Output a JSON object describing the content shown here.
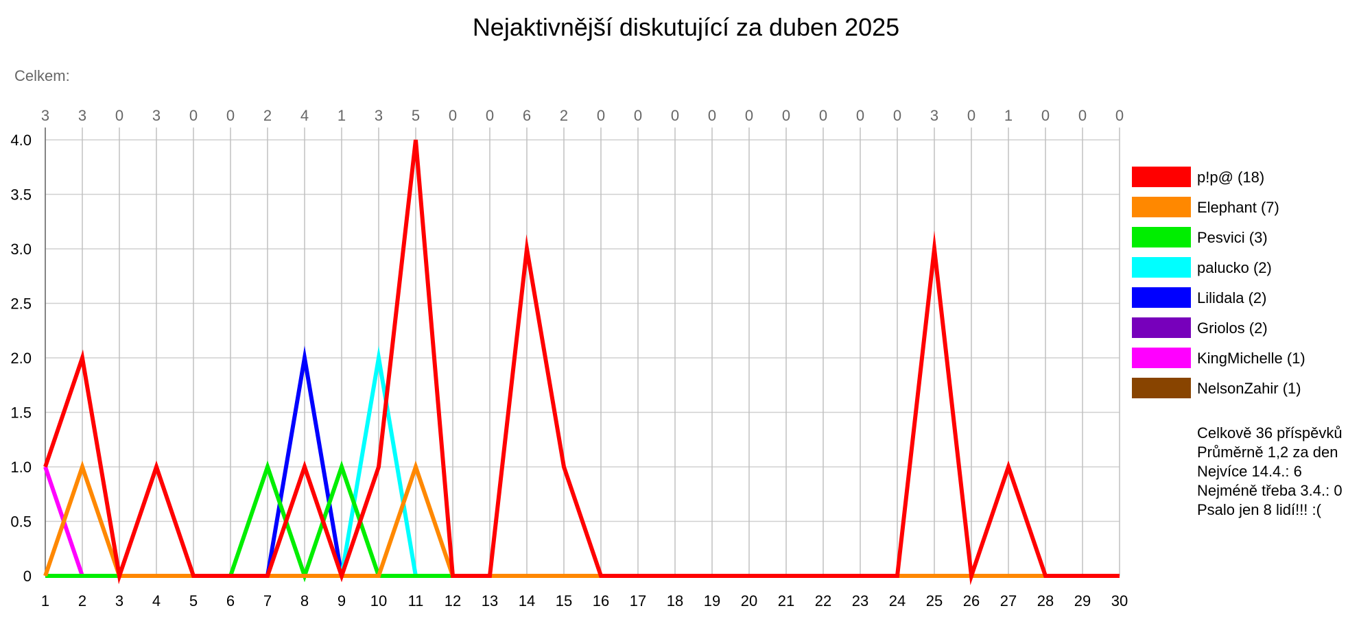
{
  "chart_data": {
    "type": "line",
    "title": "Nejaktivnější diskutující za duben 2025",
    "subtitle": "Celkem:",
    "x": [
      1,
      2,
      3,
      4,
      5,
      6,
      7,
      8,
      9,
      10,
      11,
      12,
      13,
      14,
      15,
      16,
      17,
      18,
      19,
      20,
      21,
      22,
      23,
      24,
      25,
      26,
      27,
      28,
      29,
      30
    ],
    "daily_totals": [
      3,
      3,
      0,
      3,
      0,
      0,
      2,
      4,
      1,
      3,
      5,
      0,
      0,
      6,
      2,
      0,
      0,
      0,
      0,
      0,
      0,
      0,
      0,
      0,
      3,
      0,
      1,
      0,
      0,
      0
    ],
    "ylim": [
      0,
      4.0
    ],
    "y_ticks": [
      "0",
      "0.5",
      "1.0",
      "1.5",
      "2.0",
      "2.5",
      "3.0",
      "3.5",
      "4.0"
    ],
    "grid": true,
    "legend_position": "right",
    "series": [
      {
        "name": "p!p@",
        "legend": "p!p@ (18)",
        "color": "#ff0000",
        "values": [
          1,
          2,
          0,
          1,
          0,
          0,
          0,
          1,
          0,
          1,
          4,
          0,
          0,
          3,
          1,
          0,
          0,
          0,
          0,
          0,
          0,
          0,
          0,
          0,
          3,
          0,
          1,
          0,
          0,
          0
        ]
      },
      {
        "name": "Elephant",
        "legend": "Elephant (7)",
        "color": "#ff8800",
        "values": [
          0,
          1,
          0,
          0,
          0,
          0,
          0,
          0,
          0,
          0,
          1,
          0,
          0,
          0,
          0,
          0,
          0,
          0,
          0,
          0,
          0,
          0,
          0,
          0,
          0,
          0,
          0,
          0,
          0,
          0
        ]
      },
      {
        "name": "Pesvici",
        "legend": "Pesvici (3)",
        "color": "#00ee00",
        "values": [
          0,
          0,
          0,
          0,
          0,
          0,
          1,
          0,
          1,
          0,
          0,
          0,
          0,
          0,
          0,
          0,
          0,
          0,
          0,
          0,
          0,
          0,
          0,
          0,
          0,
          0,
          0,
          0,
          0,
          0
        ]
      },
      {
        "name": "palucko",
        "legend": "palucko (2)",
        "color": "#00ffff",
        "values": [
          0,
          0,
          0,
          0,
          0,
          0,
          0,
          0,
          0,
          2,
          0,
          0,
          0,
          0,
          0,
          0,
          0,
          0,
          0,
          0,
          0,
          0,
          0,
          0,
          0,
          0,
          0,
          0,
          0,
          0
        ]
      },
      {
        "name": "Lilidala",
        "legend": "Lilidala (2)",
        "color": "#0000ff",
        "values": [
          0,
          0,
          0,
          0,
          0,
          0,
          0,
          2,
          0,
          0,
          0,
          0,
          0,
          0,
          0,
          0,
          0,
          0,
          0,
          0,
          0,
          0,
          0,
          0,
          0,
          0,
          0,
          0,
          0,
          0
        ]
      },
      {
        "name": "Griolos",
        "legend": "Griolos (2)",
        "color": "#7700bb",
        "values": [
          0,
          0,
          0,
          0,
          0,
          0,
          0,
          0,
          0,
          0,
          0,
          0,
          0,
          0,
          0,
          0,
          0,
          0,
          0,
          0,
          0,
          0,
          0,
          0,
          0,
          0,
          0,
          0,
          0,
          0
        ]
      },
      {
        "name": "KingMichelle",
        "legend": "KingMichelle (1)",
        "color": "#ff00ff",
        "values": [
          1,
          0,
          0,
          0,
          0,
          0,
          0,
          0,
          0,
          0,
          0,
          0,
          0,
          0,
          0,
          0,
          0,
          0,
          0,
          0,
          0,
          0,
          0,
          0,
          0,
          0,
          0,
          0,
          0,
          0
        ]
      },
      {
        "name": "NelsonZahir",
        "legend": "NelsonZahir (1)",
        "color": "#884400",
        "values": [
          0,
          0,
          0,
          0,
          0,
          0,
          0,
          0,
          0,
          0,
          0,
          0,
          0,
          0,
          0,
          0,
          0,
          0,
          0,
          0,
          0,
          0,
          0,
          0,
          0,
          0,
          0,
          0,
          0,
          0
        ]
      }
    ],
    "stats": [
      "Celkově 36 příspěvků",
      "Průměrně 1,2 za den",
      "Nejvíce 14.4.: 6",
      "Nejméně třeba 3.4.: 0",
      "Psalo jen 8 lidí!!! :("
    ]
  }
}
